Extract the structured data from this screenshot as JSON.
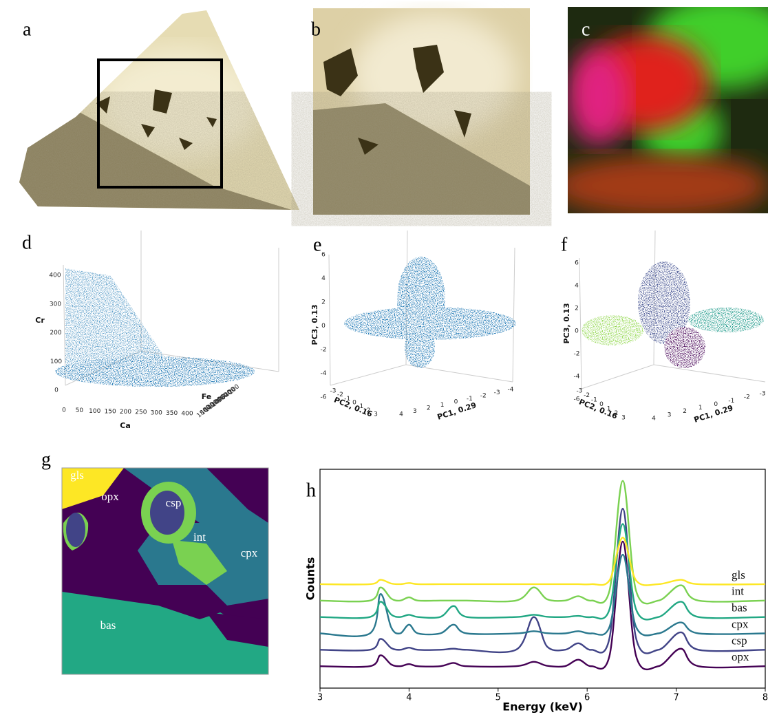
{
  "panel_labels": [
    "a",
    "b",
    "c",
    "d",
    "e",
    "f",
    "g",
    "h"
  ],
  "scatter3d": [
    {
      "axes": [
        {
          "label": "Ca",
          "ticks": [
            0,
            50,
            100,
            150,
            200,
            250,
            300,
            350,
            400
          ]
        },
        {
          "label": "Fe",
          "ticks": [
            200,
            400,
            600,
            800,
            1000,
            1200,
            1400,
            1600,
            1800
          ]
        },
        {
          "label": "Cr",
          "ticks": [
            0,
            100,
            200,
            300,
            400
          ]
        }
      ]
    },
    {
      "axes": [
        {
          "label": "PC1, 0.29",
          "ticks": [
            -4,
            -3,
            -2,
            -1,
            0,
            1,
            2,
            3,
            4
          ]
        },
        {
          "label": "PC2, 0.16",
          "ticks": [
            -3,
            -2,
            -1,
            0,
            1,
            2,
            3
          ]
        },
        {
          "label": "PC3, 0.13",
          "ticks": [
            -6,
            -4,
            -2,
            0,
            2,
            4,
            6
          ]
        }
      ]
    },
    {
      "axes": [
        {
          "label": "PC1, 0.29",
          "ticks": [
            -3,
            -2,
            -1,
            0,
            1,
            2,
            3,
            4
          ]
        },
        {
          "label": "PC2, 0.16",
          "ticks": [
            -3,
            -2,
            -1,
            0,
            1,
            2,
            3
          ]
        },
        {
          "label": "PC3, 0.13",
          "ticks": [
            -6,
            -4,
            -2,
            0,
            2,
            4,
            6
          ]
        }
      ]
    }
  ],
  "phase_map": {
    "labels": [
      "gls",
      "opx",
      "csp",
      "int",
      "cpx",
      "bas"
    ]
  },
  "chart_data": {
    "type": "line",
    "xlabel": "Energy (keV)",
    "ylabel": "Counts",
    "x": [
      3,
      3.56,
      3.68,
      3.8,
      3.9,
      4.0,
      4.1,
      4.35,
      4.5,
      4.65,
      5.2,
      5.4,
      5.55,
      5.75,
      5.9,
      6.05,
      6.25,
      6.4,
      6.55,
      6.8,
      7.05,
      7.25,
      8
    ],
    "xlim": [
      3,
      8
    ],
    "xticks": [
      3,
      4,
      5,
      6,
      7,
      8
    ],
    "ylim": [
      0,
      100
    ],
    "series": [
      {
        "name": "gls",
        "color": "#fde725",
        "values": [
          47.5,
          47.5,
          49.5,
          47.8,
          47.5,
          48,
          47.5,
          47.5,
          47.5,
          47.5,
          47.5,
          47.5,
          47.5,
          47.5,
          47.5,
          47.5,
          49.2,
          68.8,
          49.2,
          47.5,
          49.5,
          47.5,
          47.5
        ]
      },
      {
        "name": "int",
        "color": "#7ad151",
        "values": [
          40,
          40,
          46,
          40.9,
          40,
          41.5,
          40,
          40,
          40,
          40,
          40,
          46,
          40.6,
          40,
          42,
          40,
          44.4,
          94.7,
          44.4,
          40,
          47,
          40,
          40
        ]
      },
      {
        "name": "bas",
        "color": "#22a884",
        "values": [
          32.5,
          32.5,
          39.5,
          33.6,
          32.5,
          33.5,
          32.5,
          32.5,
          37.5,
          32.5,
          32.5,
          33.5,
          32.6,
          32.5,
          33,
          32.5,
          35.9,
          75,
          35.9,
          32.5,
          39.5,
          32.5,
          32.5
        ]
      },
      {
        "name": "cpx",
        "color": "#2a788e",
        "values": [
          25,
          25,
          43,
          27.7,
          25,
          29,
          25,
          25,
          29,
          25,
          25,
          26,
          25.1,
          25,
          26,
          25,
          27.9,
          61,
          27.9,
          25,
          30,
          25,
          25
        ]
      },
      {
        "name": "csp",
        "color": "#414487",
        "values": [
          17.5,
          17.5,
          22.5,
          18.3,
          17.5,
          18.5,
          17.5,
          17.5,
          18,
          17.5,
          17.5,
          32.5,
          19,
          17.5,
          20.5,
          17.5,
          22.7,
          82,
          22.7,
          17.5,
          25.5,
          17.5,
          17.5
        ]
      },
      {
        "name": "opx",
        "color": "#440154",
        "values": [
          10,
          10,
          15,
          10.8,
          10,
          11,
          10,
          10,
          11.5,
          10,
          10,
          12,
          10.2,
          10,
          13,
          10,
          14.6,
          67,
          14.6,
          10,
          18,
          10,
          10
        ]
      }
    ]
  }
}
